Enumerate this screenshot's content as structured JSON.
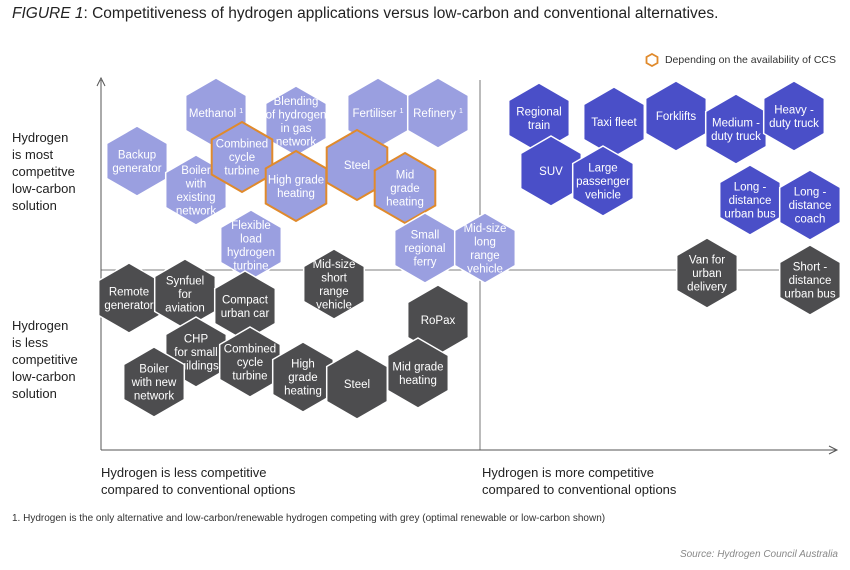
{
  "title_prefix": "FIGURE 1",
  "title_rest": ": Competitiveness of hydrogen applications versus low-carbon and conventional alternatives.",
  "legend_label": "Depending on the availability of CCS",
  "y_top_label": [
    "Hydrogen",
    "is most",
    "competitve",
    "low-carbon",
    "solution"
  ],
  "y_bottom_label": [
    "Hydrogen",
    "is less",
    "competitive",
    "low-carbon",
    "solution"
  ],
  "x_left_label": [
    "Hydrogen is less competitive",
    "compared to conventional options"
  ],
  "x_right_label": [
    "Hydrogen is more competitive",
    "compared to conventional options"
  ],
  "footnote": "1. Hydrogen is the only alternative and low-carbon/renewable hydrogen competing with grey (optimal renewable or low-carbon shown)",
  "source": "Source: Hydrogen Council Australia",
  "colors": {
    "light_purple": "#9a9fe0",
    "dark_blue": "#4a4fc8",
    "dark_grey": "#4d4d4f",
    "ccs_outline": "#e08a2c",
    "axis": "#555555"
  },
  "applications": [
    {
      "id": "methanol",
      "lines": [
        "Methanol",
        "1"
      ],
      "style": "light",
      "ccs": false,
      "sup": true
    },
    {
      "id": "blending",
      "lines": [
        "Blending",
        "of hydrogen",
        "in gas",
        "network"
      ],
      "style": "light",
      "ccs": false
    },
    {
      "id": "fertiliser",
      "lines": [
        "Fertiliser",
        "1"
      ],
      "style": "light",
      "ccs": false,
      "sup": true
    },
    {
      "id": "refinery",
      "lines": [
        "Refinery",
        "1"
      ],
      "style": "light",
      "ccs": false,
      "sup": true
    },
    {
      "id": "backup",
      "lines": [
        "Backup",
        "generator"
      ],
      "style": "light",
      "ccs": false
    },
    {
      "id": "boiler-existing",
      "lines": [
        "Boiler",
        "with",
        "existing",
        "network"
      ],
      "style": "light",
      "ccs": false
    },
    {
      "id": "combined-top",
      "lines": [
        "Combined",
        "cycle",
        "turbine"
      ],
      "style": "light",
      "ccs": true
    },
    {
      "id": "high-grade-top",
      "lines": [
        "High grade",
        "heating"
      ],
      "style": "light",
      "ccs": true
    },
    {
      "id": "steel-top",
      "lines": [
        "Steel"
      ],
      "style": "light",
      "ccs": true
    },
    {
      "id": "mid-grade-top",
      "lines": [
        "Mid",
        "grade",
        "heating"
      ],
      "style": "light",
      "ccs": true
    },
    {
      "id": "flexible",
      "lines": [
        "Flexible",
        "load",
        "hydrogen",
        "turbine"
      ],
      "style": "light",
      "ccs": false
    },
    {
      "id": "small-ferry",
      "lines": [
        "Small",
        "regional",
        "ferry"
      ],
      "style": "light",
      "ccs": false
    },
    {
      "id": "mid-long",
      "lines": [
        "Mid-size",
        "long",
        "range",
        "vehicle"
      ],
      "style": "light",
      "ccs": false
    },
    {
      "id": "regional-train",
      "lines": [
        "Regional",
        "train"
      ],
      "style": "blue",
      "ccs": false
    },
    {
      "id": "taxi",
      "lines": [
        "Taxi fleet"
      ],
      "style": "blue",
      "ccs": false
    },
    {
      "id": "forklifts",
      "lines": [
        "Forklifts"
      ],
      "style": "blue",
      "ccs": false
    },
    {
      "id": "medium-truck",
      "lines": [
        "Medium -",
        "duty truck"
      ],
      "style": "blue",
      "ccs": false
    },
    {
      "id": "heavy-truck",
      "lines": [
        "Heavy -",
        "duty truck"
      ],
      "style": "blue",
      "ccs": false
    },
    {
      "id": "suv",
      "lines": [
        "SUV"
      ],
      "style": "blue",
      "ccs": false
    },
    {
      "id": "large-passenger",
      "lines": [
        "Large",
        "passenger",
        "vehicle"
      ],
      "style": "blue",
      "ccs": false
    },
    {
      "id": "long-bus",
      "lines": [
        "Long -",
        "distance",
        "urban bus"
      ],
      "style": "blue",
      "ccs": false
    },
    {
      "id": "long-coach",
      "lines": [
        "Long -",
        "distance",
        "coach"
      ],
      "style": "blue",
      "ccs": false
    },
    {
      "id": "remote",
      "lines": [
        "Remote",
        "generator"
      ],
      "style": "grey",
      "ccs": false
    },
    {
      "id": "synfuel",
      "lines": [
        "Synfuel",
        "for",
        "aviation"
      ],
      "style": "grey",
      "ccs": false
    },
    {
      "id": "compact",
      "lines": [
        "Compact",
        "urban car"
      ],
      "style": "grey",
      "ccs": false
    },
    {
      "id": "mid-short",
      "lines": [
        "Mid-size",
        "short",
        "range",
        "vehicle"
      ],
      "style": "grey",
      "ccs": false
    },
    {
      "id": "chp",
      "lines": [
        "CHP",
        "for small",
        "buildings"
      ],
      "style": "grey",
      "ccs": false
    },
    {
      "id": "boiler-new",
      "lines": [
        "Boiler",
        "with new",
        "network"
      ],
      "style": "grey",
      "ccs": false
    },
    {
      "id": "combined-bot",
      "lines": [
        "Combined",
        "cycle",
        "turbine"
      ],
      "style": "grey",
      "ccs": false
    },
    {
      "id": "high-grade-bot",
      "lines": [
        "High",
        "grade",
        "heating"
      ],
      "style": "grey",
      "ccs": false
    },
    {
      "id": "steel-bot",
      "lines": [
        "Steel"
      ],
      "style": "grey",
      "ccs": false
    },
    {
      "id": "ropax",
      "lines": [
        "RoPax"
      ],
      "style": "grey",
      "ccs": false
    },
    {
      "id": "mid-grade-bot",
      "lines": [
        "Mid grade",
        "heating"
      ],
      "style": "grey",
      "ccs": false
    },
    {
      "id": "van",
      "lines": [
        "Van for",
        "urban",
        "delivery"
      ],
      "style": "grey",
      "ccs": false
    },
    {
      "id": "short-bus",
      "lines": [
        "Short -",
        "distance",
        "urban bus"
      ],
      "style": "grey",
      "ccs": false
    }
  ]
}
